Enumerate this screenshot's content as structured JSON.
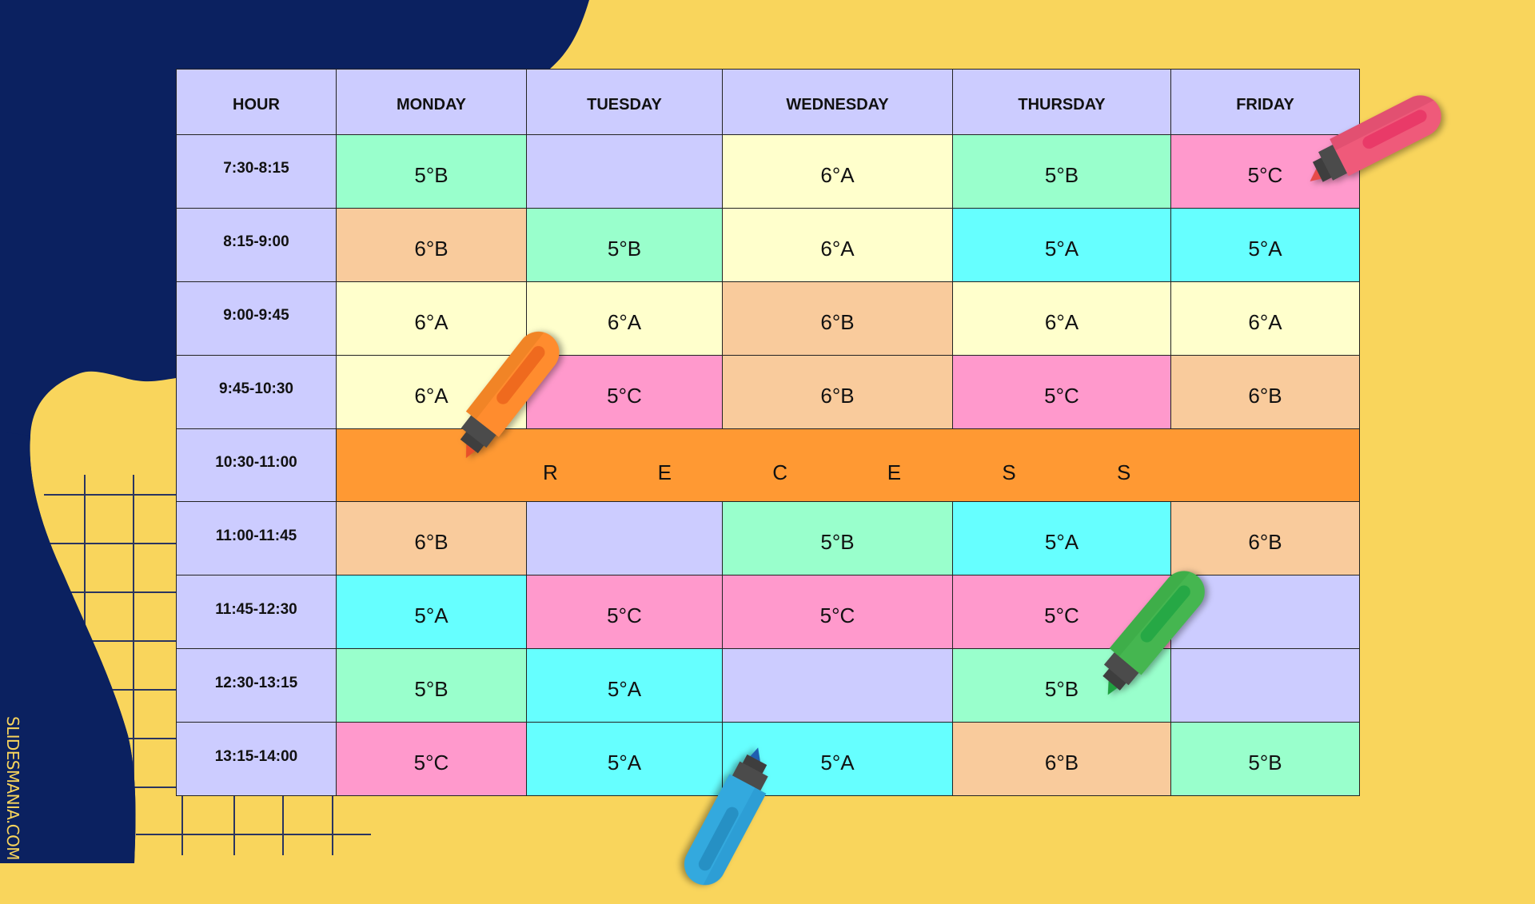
{
  "table": {
    "headers": [
      "HOUR",
      "MONDAY",
      "TUESDAY",
      "WEDNESDAY",
      "THURSDAY",
      "FRIDAY"
    ],
    "rows": [
      {
        "hour": "7:30-8:15",
        "cells": [
          {
            "text": "5°B",
            "color": "#99FFCC"
          },
          {
            "text": "",
            "color": "#CCCCFF"
          },
          {
            "text": "6°A",
            "color": "#FFFFCC"
          },
          {
            "text": "5°B",
            "color": "#99FFCC"
          },
          {
            "text": "5°C",
            "color": "#FF99CC"
          }
        ]
      },
      {
        "hour": "8:15-9:00",
        "cells": [
          {
            "text": "6°B",
            "color": "#F9CB9C"
          },
          {
            "text": "5°B",
            "color": "#99FFCC"
          },
          {
            "text": "6°A",
            "color": "#FFFFCC"
          },
          {
            "text": "5°A",
            "color": "#66FFFF"
          },
          {
            "text": "5°A",
            "color": "#66FFFF"
          }
        ]
      },
      {
        "hour": "9:00-9:45",
        "cells": [
          {
            "text": "6°A",
            "color": "#FFFFCC"
          },
          {
            "text": "6°A",
            "color": "#FFFFCC"
          },
          {
            "text": "6°B",
            "color": "#F9CB9C"
          },
          {
            "text": "6°A",
            "color": "#FFFFCC"
          },
          {
            "text": "6°A",
            "color": "#FFFFCC"
          }
        ]
      },
      {
        "hour": "9:45-10:30",
        "cells": [
          {
            "text": "6°A",
            "color": "#FFFFCC"
          },
          {
            "text": "5°C",
            "color": "#FF99CC"
          },
          {
            "text": "6°B",
            "color": "#F9CB9C"
          },
          {
            "text": "5°C",
            "color": "#FF99CC"
          },
          {
            "text": "6°B",
            "color": "#F9CB9C"
          }
        ]
      },
      {
        "hour": "10:30-11:00",
        "recess": true
      },
      {
        "hour": "11:00-11:45",
        "cells": [
          {
            "text": "6°B",
            "color": "#F9CB9C"
          },
          {
            "text": "",
            "color": "#CCCCFF"
          },
          {
            "text": "5°B",
            "color": "#99FFCC"
          },
          {
            "text": "5°A",
            "color": "#66FFFF"
          },
          {
            "text": "6°B",
            "color": "#F9CB9C"
          }
        ]
      },
      {
        "hour": "11:45-12:30",
        "cells": [
          {
            "text": "5°A",
            "color": "#66FFFF"
          },
          {
            "text": "5°C",
            "color": "#FF99CC"
          },
          {
            "text": "5°C",
            "color": "#FF99CC"
          },
          {
            "text": "5°C",
            "color": "#FF99CC"
          },
          {
            "text": "",
            "color": "#CCCCFF"
          }
        ]
      },
      {
        "hour": "12:30-13:15",
        "cells": [
          {
            "text": "5°B",
            "color": "#99FFCC"
          },
          {
            "text": "5°A",
            "color": "#66FFFF"
          },
          {
            "text": "",
            "color": "#CCCCFF"
          },
          {
            "text": "5°B",
            "color": "#99FFCC"
          },
          {
            "text": "",
            "color": "#CCCCFF"
          }
        ]
      },
      {
        "hour": "13:15-14:00",
        "cells": [
          {
            "text": "5°C",
            "color": "#FF99CC"
          },
          {
            "text": "5°A",
            "color": "#66FFFF"
          },
          {
            "text": "5°A",
            "color": "#66FFFF"
          },
          {
            "text": "6°B",
            "color": "#F9CB9C"
          },
          {
            "text": "5°B",
            "color": "#99FFCC"
          }
        ]
      }
    ],
    "recess": {
      "letters": [
        "R",
        "E",
        "C",
        "E",
        "S",
        "S"
      ],
      "color": "#FF9933"
    }
  },
  "brand": {
    "text": "SLIDESMANIA.COM"
  },
  "colors": {
    "background": "#F9D55C",
    "navy": "#0B2160",
    "header": "#CCCCFF"
  },
  "decorations": {
    "markers": [
      {
        "name": "orange-marker",
        "body": "#FF8C2E",
        "stripe": "#EF6A1E",
        "tip": "#E8502A"
      },
      {
        "name": "pink-marker",
        "body": "#EF5A7A",
        "stripe": "#E93A68",
        "tip": "#E74A4A"
      },
      {
        "name": "green-marker",
        "body": "#45B650",
        "stripe": "#26A845",
        "tip": "#1FA040"
      },
      {
        "name": "blue-marker",
        "body": "#33A9DE",
        "stripe": "#2690C4",
        "tip": "#1F5FB0"
      }
    ]
  }
}
